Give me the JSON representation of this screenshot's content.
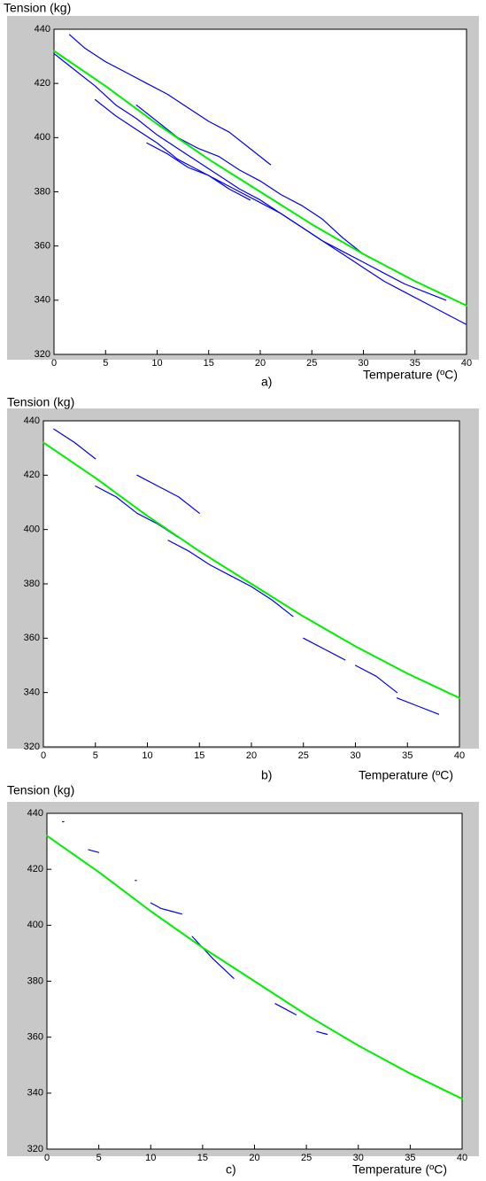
{
  "chart_data": [
    {
      "type": "line",
      "y_label": "Tension (kg)",
      "x_label": "Temperature (ºC)",
      "caption": "a)",
      "xlim": [
        0,
        40
      ],
      "xticks": [
        0,
        5,
        10,
        15,
        20,
        25,
        30,
        35,
        40
      ],
      "ylim": [
        320,
        440
      ],
      "yticks": [
        320,
        340,
        360,
        380,
        400,
        420,
        440
      ],
      "series": [
        {
          "color": "#0000ee",
          "x": [
            1.5,
            3,
            5,
            7,
            9,
            11,
            13,
            15,
            17,
            19,
            21
          ],
          "values": [
            438,
            433,
            428,
            424,
            420,
            416,
            411,
            406,
            402,
            396,
            390
          ]
        },
        {
          "color": "#0000ee",
          "x": [
            0,
            2,
            4,
            6,
            8,
            10,
            12,
            14,
            16,
            18,
            20,
            22,
            24,
            26,
            28,
            30,
            32,
            34,
            36,
            38,
            40
          ],
          "values": [
            431,
            425,
            419,
            412,
            407,
            401,
            396,
            391,
            386,
            381,
            377,
            372,
            367,
            362,
            357,
            352,
            347,
            343,
            339,
            335,
            331
          ]
        },
        {
          "color": "#0000ee",
          "x": [
            4,
            6,
            8,
            10,
            12,
            14,
            16,
            18,
            20,
            22,
            24,
            26,
            28,
            30,
            32,
            34,
            36,
            38
          ],
          "values": [
            414,
            408,
            403,
            398,
            392,
            388,
            384,
            380,
            376,
            372,
            367,
            362,
            358,
            354,
            350,
            346,
            343,
            340
          ]
        },
        {
          "color": "#0000ee",
          "x": [
            8,
            10,
            12,
            14,
            16,
            18,
            20,
            22,
            24,
            26,
            28,
            30,
            32
          ],
          "values": [
            412,
            406,
            400,
            396,
            393,
            388,
            384,
            379,
            375,
            370,
            363,
            357,
            353
          ]
        },
        {
          "color": "#0000ee",
          "x": [
            9,
            11,
            13,
            15,
            17,
            19
          ],
          "values": [
            398,
            394,
            389,
            386,
            381,
            377
          ]
        },
        {
          "color": "#00ee00",
          "x": [
            0,
            5,
            10,
            15,
            20,
            25,
            30,
            35,
            40
          ],
          "values": [
            432,
            419,
            405,
            392,
            380,
            368,
            357,
            347,
            338
          ]
        }
      ]
    },
    {
      "type": "line",
      "y_label": "Tension (kg)",
      "x_label": "Temperature (ºC)",
      "caption": "b)",
      "xlim": [
        0,
        40
      ],
      "xticks": [
        0,
        5,
        10,
        15,
        20,
        25,
        30,
        35,
        40
      ],
      "ylim": [
        320,
        440
      ],
      "yticks": [
        320,
        340,
        360,
        380,
        400,
        420,
        440
      ],
      "series": [
        {
          "color": "#0000ee",
          "x": [
            1,
            3,
            5
          ],
          "values": [
            437,
            432,
            426
          ]
        },
        {
          "color": "#0000ee",
          "x": [
            5,
            7,
            9,
            11,
            13
          ],
          "values": [
            416,
            412,
            406,
            402,
            397
          ]
        },
        {
          "color": "#0000ee",
          "x": [
            9,
            11,
            13,
            15
          ],
          "values": [
            420,
            416,
            412,
            406
          ]
        },
        {
          "color": "#0000ee",
          "x": [
            12,
            14,
            16,
            18,
            20,
            22,
            24
          ],
          "values": [
            396,
            392,
            387,
            383,
            379,
            374,
            368
          ]
        },
        {
          "color": "#0000ee",
          "x": [
            25,
            27,
            29
          ],
          "values": [
            360,
            356,
            352
          ]
        },
        {
          "color": "#0000ee",
          "x": [
            30,
            32,
            34
          ],
          "values": [
            350,
            346,
            340
          ]
        },
        {
          "color": "#0000ee",
          "x": [
            34,
            36,
            38
          ],
          "values": [
            338,
            335,
            332
          ]
        },
        {
          "color": "#00ee00",
          "x": [
            0,
            5,
            10,
            15,
            20,
            25,
            30,
            35,
            40
          ],
          "values": [
            432,
            419,
            405,
            392,
            380,
            368,
            357,
            347,
            338
          ]
        }
      ]
    },
    {
      "type": "line",
      "y_label": "Tension (kg)",
      "x_label": "Temperature (ºC)",
      "caption": "c)",
      "xlim": [
        0,
        40
      ],
      "xticks": [
        0,
        5,
        10,
        15,
        20,
        25,
        30,
        35,
        40
      ],
      "ylim": [
        320,
        440
      ],
      "yticks": [
        320,
        340,
        360,
        380,
        400,
        420,
        440
      ],
      "series": [
        {
          "color": "#0000ee",
          "x": [
            1.5
          ],
          "values": [
            437
          ]
        },
        {
          "color": "#0000ee",
          "x": [
            4,
            5
          ],
          "values": [
            427,
            426
          ]
        },
        {
          "color": "#0000ee",
          "x": [
            8.5
          ],
          "values": [
            416
          ]
        },
        {
          "color": "#0000ee",
          "x": [
            10,
            11,
            12,
            13
          ],
          "values": [
            408,
            406,
            405,
            404
          ]
        },
        {
          "color": "#0000ee",
          "x": [
            14,
            16,
            18
          ],
          "values": [
            396,
            388,
            381
          ]
        },
        {
          "color": "#0000ee",
          "x": [
            22,
            24
          ],
          "values": [
            372,
            368
          ]
        },
        {
          "color": "#0000ee",
          "x": [
            26,
            27
          ],
          "values": [
            362,
            361
          ]
        },
        {
          "color": "#00ee00",
          "x": [
            0,
            5,
            10,
            15,
            20,
            25,
            30,
            35,
            40
          ],
          "values": [
            432,
            419,
            405,
            392,
            380,
            368,
            357,
            347,
            338
          ]
        }
      ]
    }
  ]
}
